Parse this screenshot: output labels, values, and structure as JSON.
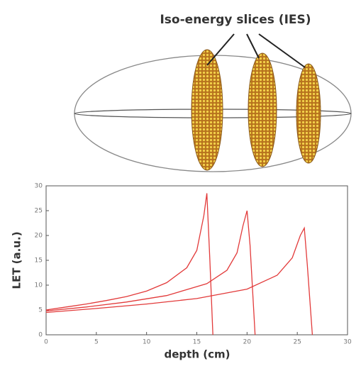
{
  "diagram": {
    "label": "Iso-energy slices (IES)"
  },
  "chart_data": {
    "type": "line",
    "x_label": "depth (cm)",
    "y_label": "LET (a.u.)",
    "xlim": [
      0,
      30
    ],
    "xticks": [
      0,
      5,
      10,
      15,
      20,
      25,
      30
    ],
    "ylim": [
      0,
      30
    ],
    "yticks": [
      0,
      5,
      10,
      15,
      20,
      25,
      30
    ],
    "series": [
      {
        "color": "#e23a3a",
        "x": [
          0,
          2,
          4,
          6,
          8,
          10,
          12,
          14,
          15,
          15.7,
          16,
          16.3,
          16.6
        ],
        "values": [
          5,
          5.6,
          6.2,
          6.9,
          7.7,
          8.8,
          10.5,
          13.5,
          17,
          24,
          28.5,
          15,
          0
        ]
      },
      {
        "color": "#e23a3a",
        "x": [
          0,
          4,
          8,
          12,
          16,
          18,
          19,
          19.6,
          20,
          20.3,
          20.8
        ],
        "values": [
          4.8,
          5.6,
          6.6,
          7.9,
          10.3,
          13,
          16.5,
          22,
          25,
          18,
          0
        ]
      },
      {
        "color": "#e23a3a",
        "x": [
          0,
          5,
          10,
          15,
          20,
          23,
          24.5,
          25.3,
          25.7,
          26,
          26.5
        ],
        "values": [
          4.5,
          5.3,
          6.2,
          7.3,
          9.2,
          12,
          15.5,
          20,
          21.5,
          14,
          0
        ]
      }
    ]
  }
}
